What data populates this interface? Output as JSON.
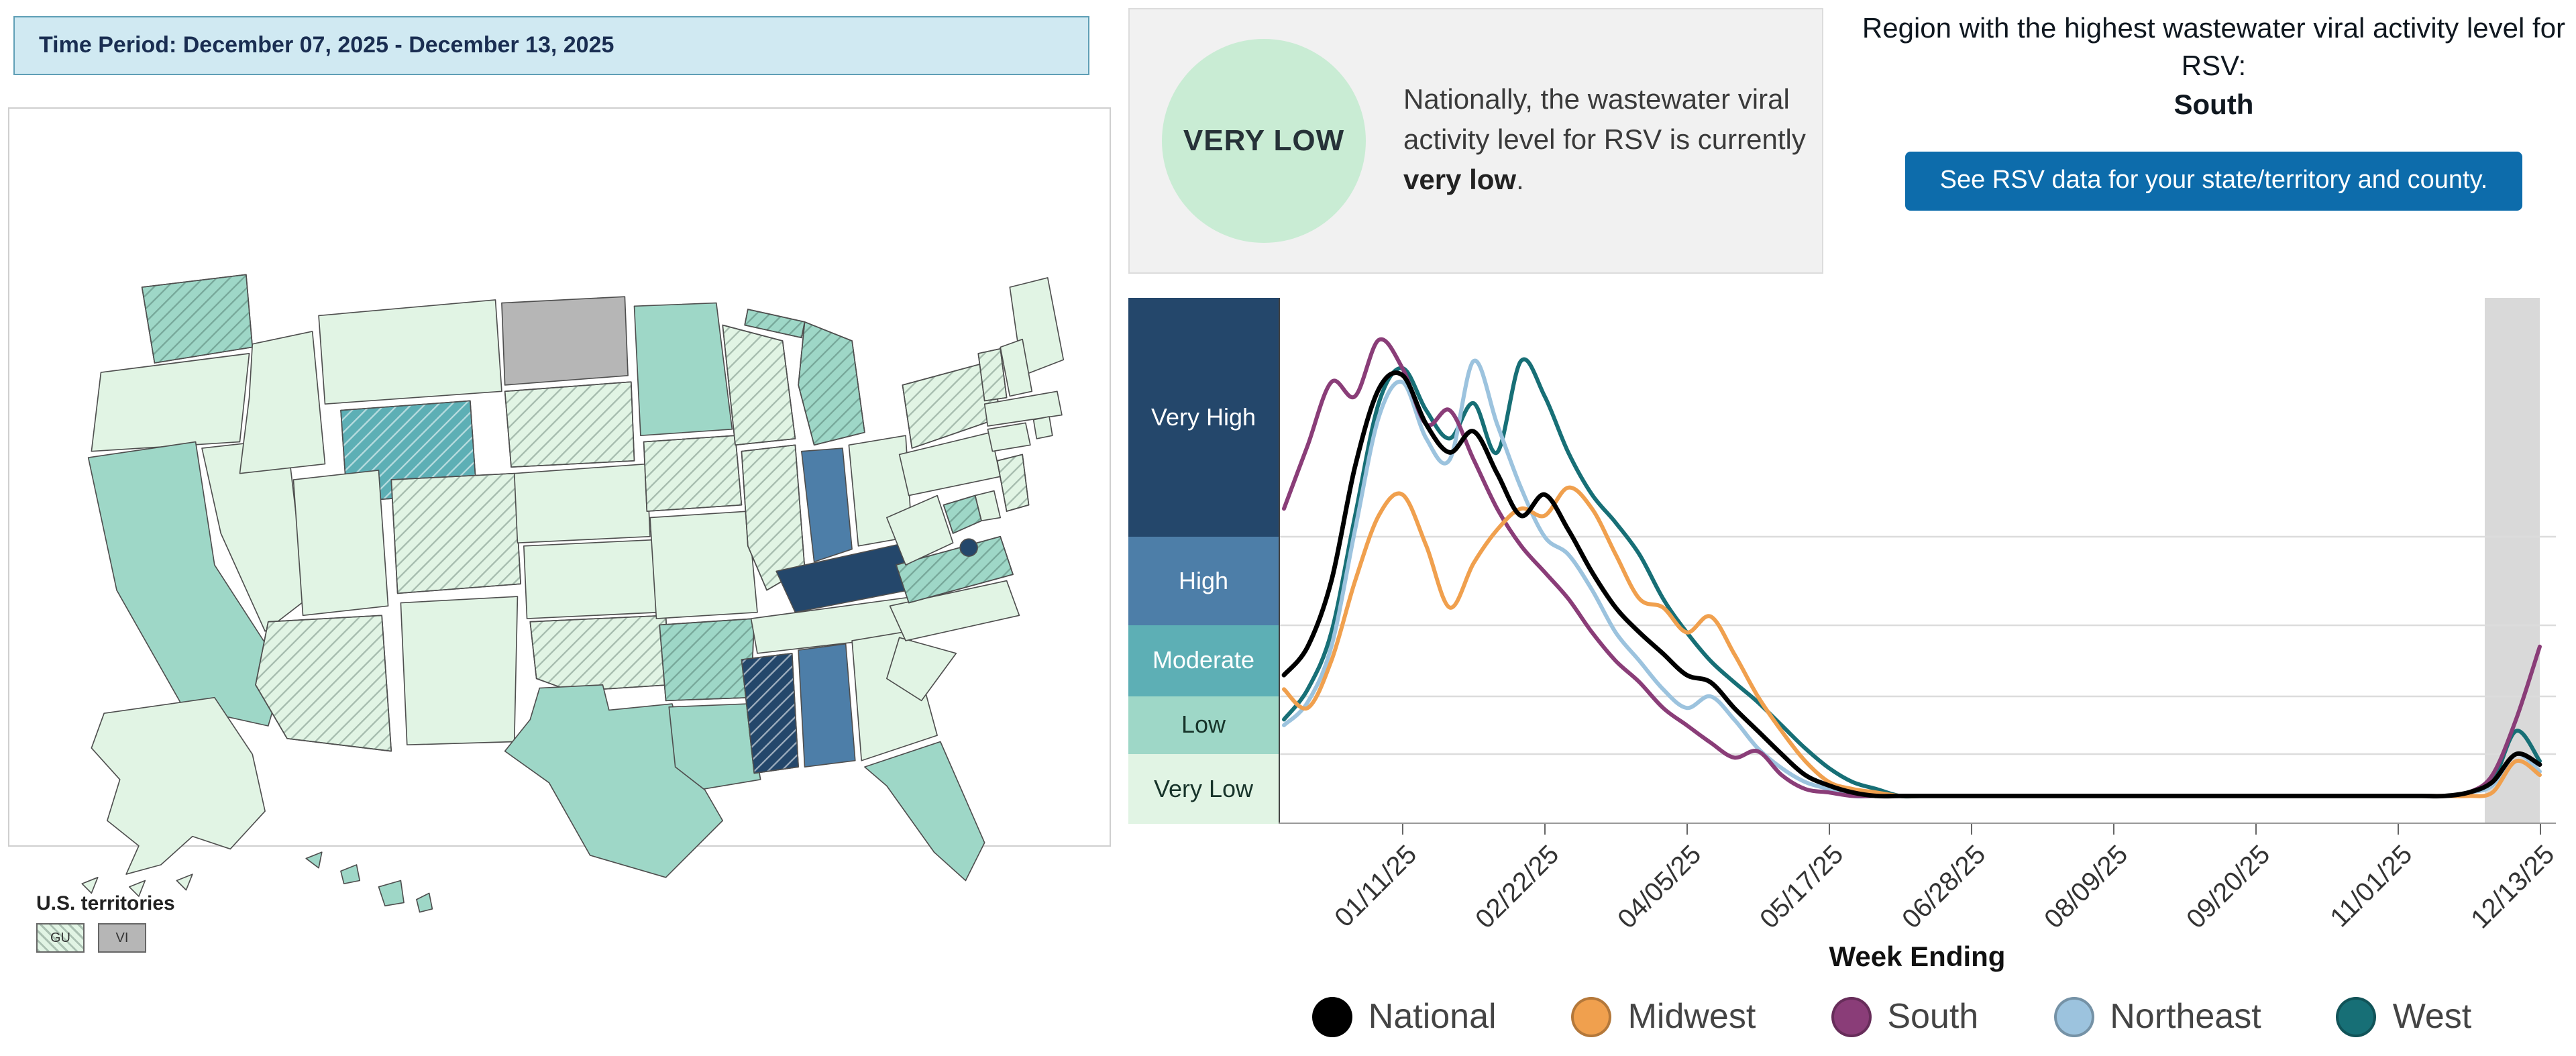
{
  "time_period": {
    "label": "Time Period: December 07, 2025 - December 13, 2025"
  },
  "national_summary": {
    "badge": "VERY LOW",
    "badge_color": "#c9ecd4",
    "text_prefix": "Nationally, the wastewater viral activity level for RSV is currently ",
    "text_bold": "very low",
    "text_suffix": "."
  },
  "region_callout": {
    "heading": "Region with the highest wastewater viral activity level for RSV:",
    "region": "South",
    "button_label": "See RSV data for your state/territory and county."
  },
  "map": {
    "territories_label": "U.S. territories",
    "territories": [
      {
        "code": "GU",
        "level": "very_low",
        "hatched": true
      },
      {
        "code": "VI",
        "level": "no_data",
        "hatched": false
      }
    ],
    "level_colors": {
      "very_low": "#e1f4e4",
      "low": "#9ed7c7",
      "moderate": "#5dafb5",
      "high": "#4d7ea8",
      "very_high": "#24476b",
      "no_data": "#b6b6b6"
    },
    "states": {
      "WA": {
        "level": "low",
        "hatched": true
      },
      "OR": {
        "level": "very_low",
        "hatched": false
      },
      "CA": {
        "level": "low",
        "hatched": false
      },
      "NV": {
        "level": "very_low",
        "hatched": false
      },
      "ID": {
        "level": "very_low",
        "hatched": false
      },
      "MT": {
        "level": "very_low",
        "hatched": false
      },
      "WY": {
        "level": "moderate",
        "hatched": true
      },
      "UT": {
        "level": "very_low",
        "hatched": false
      },
      "CO": {
        "level": "very_low",
        "hatched": true
      },
      "AZ": {
        "level": "very_low",
        "hatched": true
      },
      "NM": {
        "level": "very_low",
        "hatched": false
      },
      "ND": {
        "level": "no_data",
        "hatched": false
      },
      "SD": {
        "level": "very_low",
        "hatched": true
      },
      "NE": {
        "level": "very_low",
        "hatched": false
      },
      "KS": {
        "level": "very_low",
        "hatched": false
      },
      "OK": {
        "level": "very_low",
        "hatched": true
      },
      "TX": {
        "level": "low",
        "hatched": false
      },
      "MN": {
        "level": "low",
        "hatched": false
      },
      "IA": {
        "level": "very_low",
        "hatched": true
      },
      "MO": {
        "level": "very_low",
        "hatched": false
      },
      "AR": {
        "level": "low",
        "hatched": true
      },
      "LA": {
        "level": "low",
        "hatched": false
      },
      "WI": {
        "level": "very_low",
        "hatched": true
      },
      "IL": {
        "level": "very_low",
        "hatched": true
      },
      "MI": {
        "level": "low",
        "hatched": true
      },
      "IN": {
        "level": "high",
        "hatched": false
      },
      "OH": {
        "level": "very_low",
        "hatched": false
      },
      "KY": {
        "level": "very_high",
        "hatched": false
      },
      "TN": {
        "level": "very_low",
        "hatched": false
      },
      "MS": {
        "level": "very_high",
        "hatched": true
      },
      "AL": {
        "level": "high",
        "hatched": false
      },
      "GA": {
        "level": "very_low",
        "hatched": false
      },
      "FL": {
        "level": "low",
        "hatched": false
      },
      "SC": {
        "level": "very_low",
        "hatched": false
      },
      "NC": {
        "level": "very_low",
        "hatched": false
      },
      "VA": {
        "level": "low",
        "hatched": true
      },
      "WV": {
        "level": "very_low",
        "hatched": false
      },
      "PA": {
        "level": "very_low",
        "hatched": false
      },
      "NY": {
        "level": "very_low",
        "hatched": true
      },
      "ME": {
        "level": "very_low",
        "hatched": false
      },
      "VT": {
        "level": "very_low",
        "hatched": true
      },
      "NH": {
        "level": "very_low",
        "hatched": false
      },
      "MA": {
        "level": "very_low",
        "hatched": false
      },
      "CT": {
        "level": "very_low",
        "hatched": false
      },
      "RI": {
        "level": "very_low",
        "hatched": false
      },
      "NJ": {
        "level": "very_low",
        "hatched": true
      },
      "DE": {
        "level": "very_low",
        "hatched": false
      },
      "MD": {
        "level": "low",
        "hatched": true
      },
      "DC": {
        "level": "very_high",
        "hatched": false
      },
      "AK": {
        "level": "very_low",
        "hatched": false
      },
      "HI": {
        "level": "low",
        "hatched": false
      }
    }
  },
  "chart_data": {
    "type": "line",
    "x_axis_label": "Week Ending",
    "y_bands": [
      {
        "label": "Very High",
        "level": "very_high"
      },
      {
        "label": "High",
        "level": "high"
      },
      {
        "label": "Moderate",
        "level": "moderate"
      },
      {
        "label": "Low",
        "level": "low"
      },
      {
        "label": "Very Low",
        "level": "very_low"
      }
    ],
    "y_band_note": "y axis is categorical activity level; values below are in band units (1=Low threshold, 2=Moderate, 3=High, 4=Very High)",
    "ticks": [
      {
        "week": 5,
        "label": "01/11/25"
      },
      {
        "week": 11,
        "label": "02/22/25"
      },
      {
        "week": 17,
        "label": "04/05/25"
      },
      {
        "week": 23,
        "label": "05/17/25"
      },
      {
        "week": 29,
        "label": "06/28/25"
      },
      {
        "week": 35,
        "label": "08/09/25"
      },
      {
        "week": 41,
        "label": "09/20/25"
      },
      {
        "week": 47,
        "label": "11/01/25"
      },
      {
        "week": 53,
        "label": "12/13/25"
      }
    ],
    "series": [
      {
        "name": "National",
        "color": "#000000",
        "values": [
          2.3,
          2.7,
          3.5,
          5.0,
          6.1,
          6.3,
          5.6,
          5.2,
          5.5,
          4.9,
          4.3,
          4.6,
          4.1,
          3.6,
          3.2,
          2.9,
          2.6,
          2.3,
          2.2,
          1.8,
          1.4,
          1.0,
          0.7,
          0.55,
          0.45,
          0.4,
          0.4,
          0.4,
          0.4,
          0.4,
          0.4,
          0.4,
          0.4,
          0.4,
          0.4,
          0.4,
          0.4,
          0.4,
          0.4,
          0.4,
          0.4,
          0.4,
          0.4,
          0.4,
          0.4,
          0.4,
          0.4,
          0.4,
          0.4,
          0.4,
          0.45,
          0.6,
          1.0,
          0.85
        ]
      },
      {
        "name": "Midwest",
        "color": "#f0a04e",
        "values": [
          2.1,
          1.8,
          2.5,
          3.5,
          4.3,
          4.6,
          3.9,
          3.2,
          3.7,
          4.1,
          4.4,
          4.3,
          4.7,
          4.4,
          3.8,
          3.3,
          3.2,
          2.9,
          3.1,
          2.6,
          2.0,
          1.4,
          0.9,
          0.6,
          0.5,
          0.45,
          0.4,
          0.4,
          0.4,
          0.4,
          0.4,
          0.4,
          0.4,
          0.4,
          0.4,
          0.4,
          0.4,
          0.4,
          0.4,
          0.4,
          0.4,
          0.4,
          0.4,
          0.4,
          0.4,
          0.4,
          0.4,
          0.4,
          0.4,
          0.4,
          0.4,
          0.45,
          0.9,
          0.7
        ]
      },
      {
        "name": "South",
        "color": "#8a3d78",
        "values": [
          4.4,
          5.3,
          6.2,
          6.0,
          6.8,
          6.4,
          5.6,
          5.8,
          5.1,
          4.4,
          3.9,
          3.6,
          3.3,
          2.9,
          2.5,
          2.2,
          1.8,
          1.5,
          1.2,
          0.95,
          1.05,
          0.7,
          0.5,
          0.45,
          0.4,
          0.4,
          0.4,
          0.4,
          0.4,
          0.4,
          0.4,
          0.4,
          0.4,
          0.4,
          0.4,
          0.4,
          0.4,
          0.4,
          0.4,
          0.4,
          0.4,
          0.4,
          0.4,
          0.4,
          0.4,
          0.4,
          0.4,
          0.4,
          0.4,
          0.4,
          0.45,
          0.7,
          1.6,
          2.7
        ]
      },
      {
        "name": "Northeast",
        "color": "#9cc3de",
        "values": [
          1.5,
          1.9,
          2.7,
          4.1,
          5.7,
          6.2,
          5.4,
          5.1,
          6.5,
          5.6,
          4.7,
          4.0,
          3.8,
          3.4,
          2.9,
          2.5,
          2.1,
          1.8,
          2.0,
          1.6,
          1.1,
          0.8,
          0.6,
          0.5,
          0.4,
          0.4,
          0.4,
          0.4,
          0.4,
          0.4,
          0.4,
          0.4,
          0.4,
          0.4,
          0.4,
          0.4,
          0.4,
          0.4,
          0.4,
          0.4,
          0.4,
          0.4,
          0.4,
          0.4,
          0.4,
          0.4,
          0.4,
          0.4,
          0.4,
          0.4,
          0.45,
          0.55,
          1.0,
          0.75
        ]
      },
      {
        "name": "West",
        "color": "#176f76",
        "values": [
          1.6,
          2.1,
          2.9,
          4.3,
          5.9,
          6.4,
          5.8,
          5.4,
          5.9,
          5.2,
          6.5,
          6.0,
          5.2,
          4.6,
          4.2,
          3.8,
          3.3,
          2.9,
          2.5,
          2.2,
          1.9,
          1.5,
          1.1,
          0.8,
          0.6,
          0.5,
          0.4,
          0.4,
          0.4,
          0.4,
          0.4,
          0.4,
          0.4,
          0.4,
          0.4,
          0.4,
          0.4,
          0.4,
          0.4,
          0.4,
          0.4,
          0.4,
          0.4,
          0.4,
          0.4,
          0.4,
          0.4,
          0.4,
          0.4,
          0.4,
          0.45,
          0.6,
          1.4,
          0.9
        ]
      }
    ]
  }
}
